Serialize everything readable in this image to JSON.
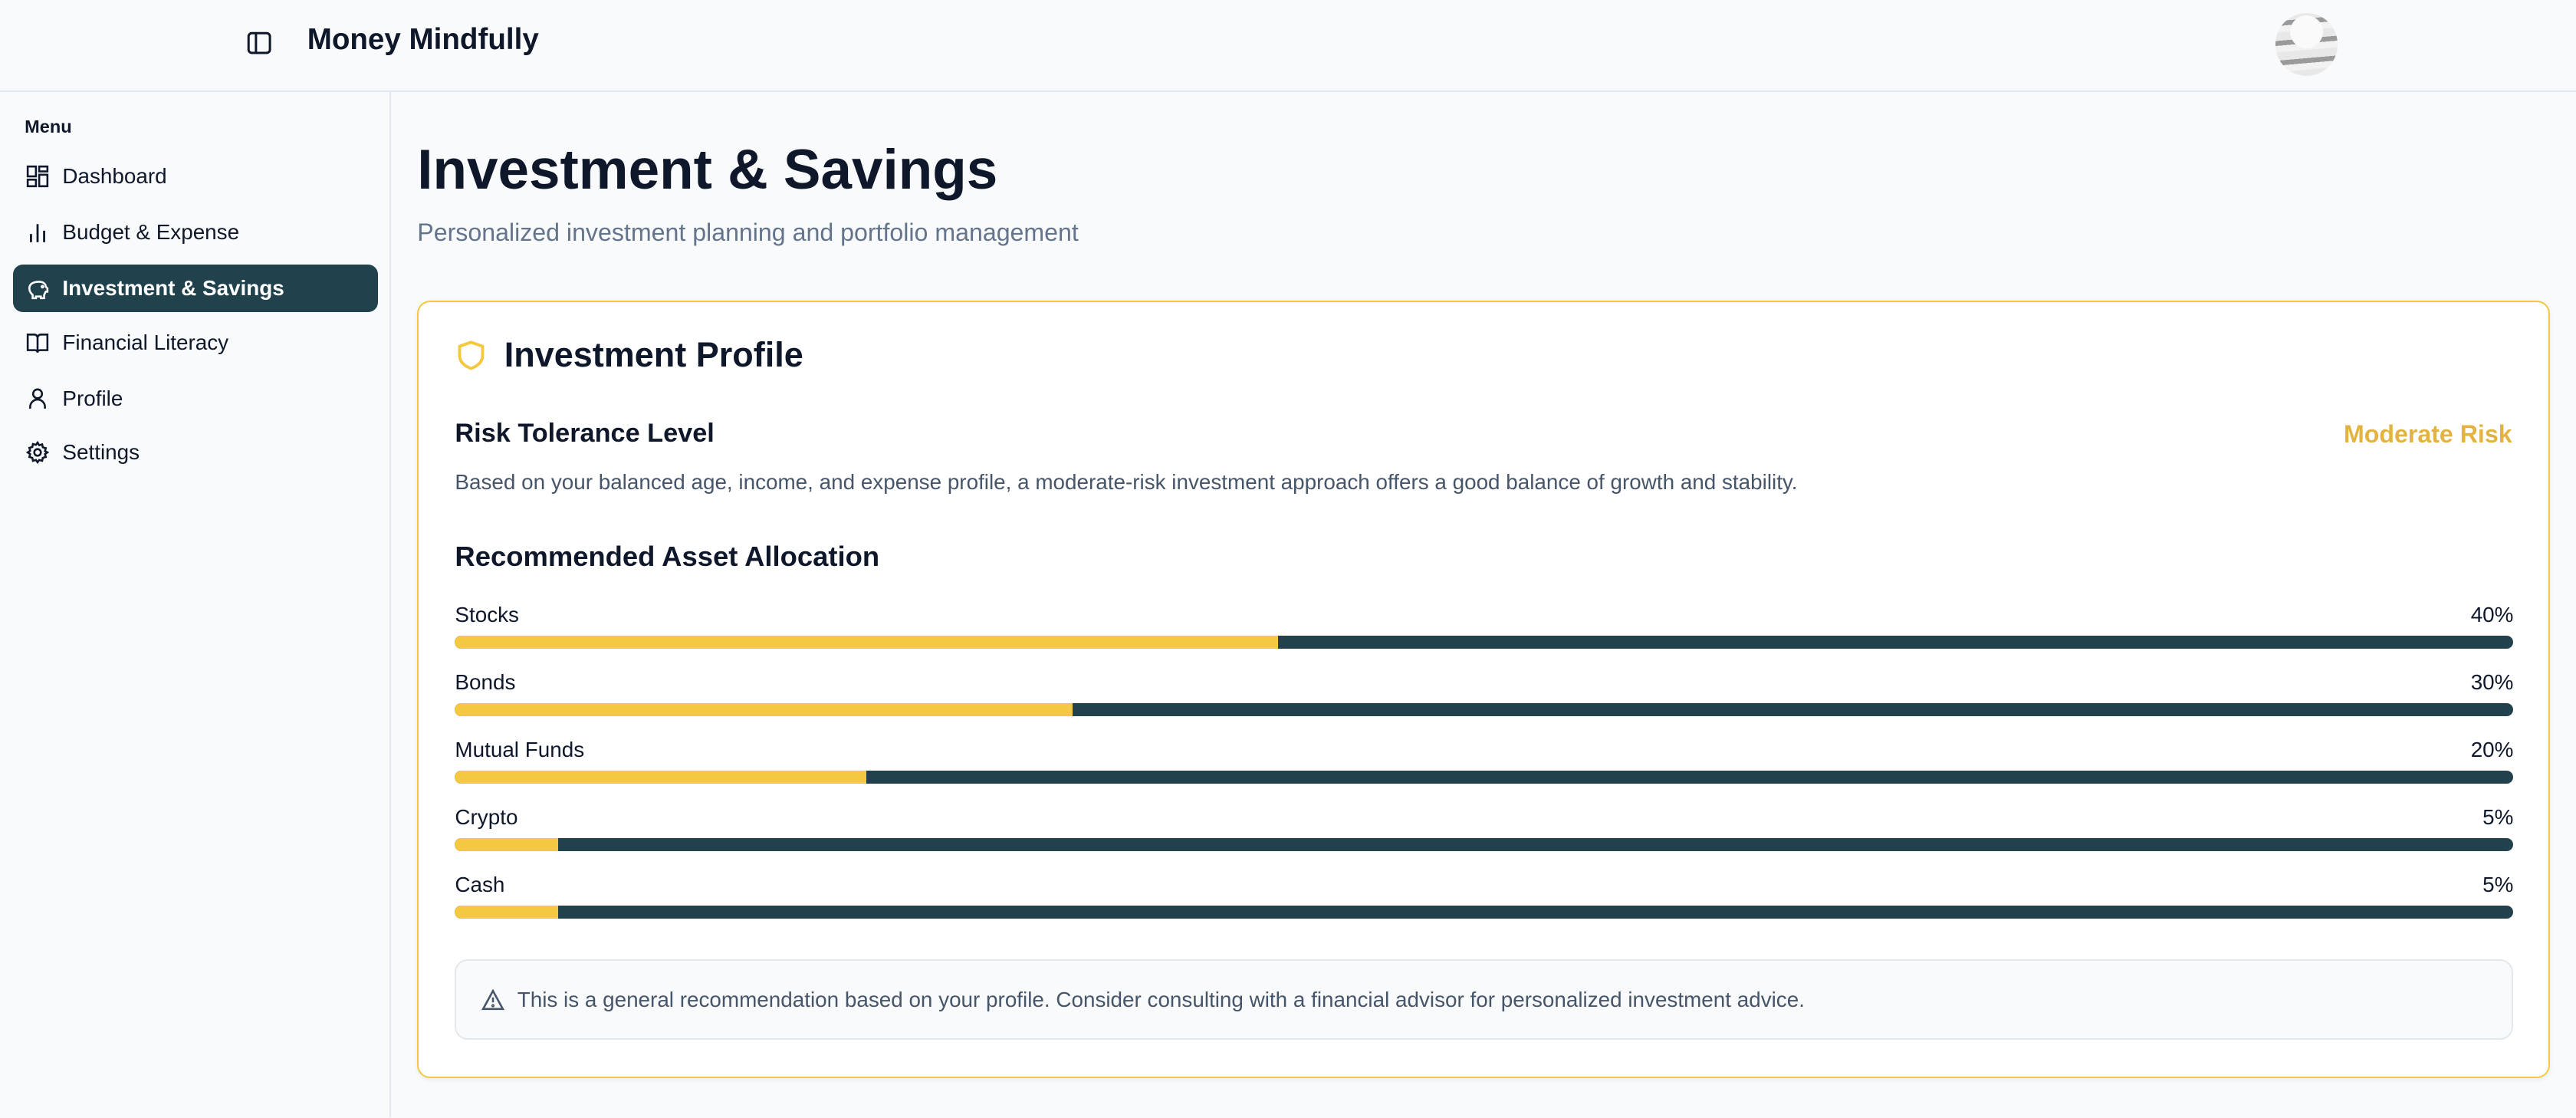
{
  "header": {
    "title": "Money Mindfully",
    "toggle_icon": "sidebar-toggle-icon",
    "avatar": "user-avatar"
  },
  "sidebar": {
    "menu_label": "Menu",
    "items": [
      {
        "label": "Dashboard",
        "icon": "dashboard-icon"
      },
      {
        "label": "Budget & Expense",
        "icon": "bar-chart-icon"
      },
      {
        "label": "Investment & Savings",
        "icon": "piggy-bank-icon",
        "active": true
      },
      {
        "label": "Financial Literacy",
        "icon": "book-icon"
      },
      {
        "label": "Profile",
        "icon": "user-icon"
      },
      {
        "label": "Settings",
        "icon": "gear-icon"
      }
    ]
  },
  "main": {
    "title": "Investment & Savings",
    "subtitle": "Personalized investment planning and portfolio management",
    "card": {
      "title": "Investment Profile",
      "risk_heading": "Risk Tolerance Level",
      "risk_value": "Moderate Risk",
      "risk_description": "Based on your balanced age, income, and expense profile, a moderate-risk investment approach offers a good balance of growth and stability.",
      "allocation_heading": "Recommended Asset Allocation",
      "allocations": [
        {
          "label": "Stocks",
          "percent_text": "40%",
          "percent": 40
        },
        {
          "label": "Bonds",
          "percent_text": "30%",
          "percent": 30
        },
        {
          "label": "Mutual Funds",
          "percent_text": "20%",
          "percent": 20
        },
        {
          "label": "Crypto",
          "percent_text": "5%",
          "percent": 5
        },
        {
          "label": "Cash",
          "percent_text": "5%",
          "percent": 5
        }
      ],
      "disclaimer": "This is a general recommendation based on your profile. Consider consulting with a financial advisor for personalized investment advice."
    }
  },
  "colors": {
    "accent": "#f5c842",
    "primary": "#21424d",
    "risk": "#e3b341"
  }
}
